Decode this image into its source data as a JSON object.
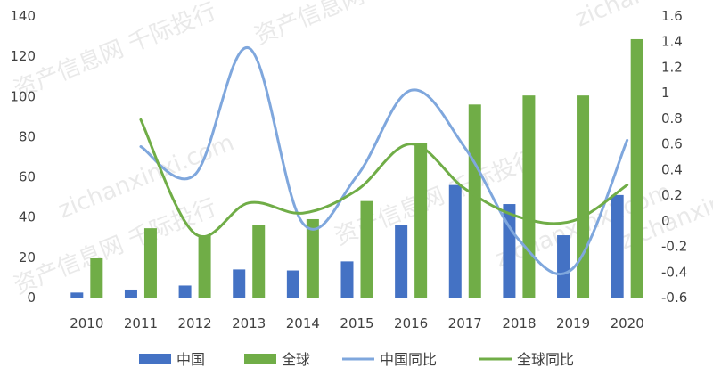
{
  "chart_data": {
    "type": "bar+line",
    "categories": [
      "2010",
      "2011",
      "2012",
      "2013",
      "2014",
      "2015",
      "2016",
      "2017",
      "2018",
      "2019",
      "2020"
    ],
    "series": [
      {
        "name": "中国",
        "type": "bar",
        "axis": "left",
        "color": "#4472c4",
        "values": [
          2.5,
          4,
          6,
          14,
          13.5,
          18,
          36,
          56,
          46.5,
          31,
          51
        ]
      },
      {
        "name": "全球",
        "type": "bar",
        "axis": "left",
        "color": "#70ad47",
        "values": [
          19.5,
          34.5,
          31,
          36,
          39,
          48,
          77,
          96,
          100.5,
          100.5,
          128.5
        ]
      },
      {
        "name": "中国同比",
        "type": "line",
        "axis": "right",
        "color": "#7fa7dd",
        "values": [
          null,
          0.58,
          0.36,
          1.35,
          -0.02,
          0.35,
          1.02,
          0.57,
          -0.15,
          -0.37,
          0.63
        ]
      },
      {
        "name": "全球同比",
        "type": "line",
        "axis": "right",
        "color": "#70ad47",
        "values": [
          null,
          0.79,
          -0.1,
          0.14,
          0.06,
          0.24,
          0.6,
          0.25,
          0.03,
          0.0,
          0.28
        ]
      }
    ],
    "y_left": {
      "min": 0,
      "max": 140,
      "ticks": [
        "0",
        "20",
        "40",
        "60",
        "80",
        "100",
        "120",
        "140"
      ]
    },
    "y_right": {
      "min": -0.6,
      "max": 1.6,
      "ticks": [
        "-0.6",
        "-0.4",
        "-0.2",
        "0",
        "0.2",
        "0.4",
        "0.6",
        "0.8",
        "1",
        "1.2",
        "1.4",
        "1.6"
      ]
    },
    "legend_position": "bottom",
    "grid": false
  },
  "watermark": [
    "资产信息网 千际投行",
    "zichanxinxi.com"
  ]
}
